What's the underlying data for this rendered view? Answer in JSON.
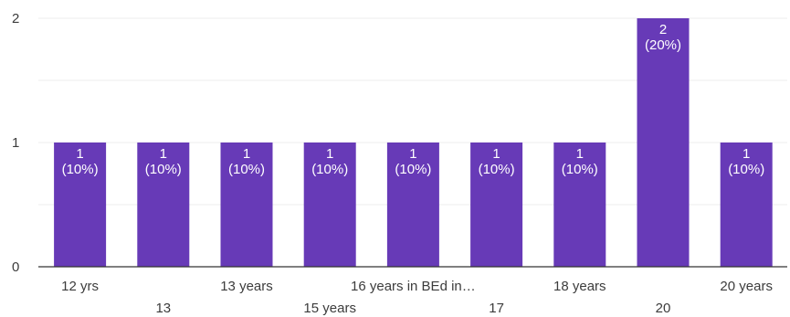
{
  "chart_data": {
    "type": "bar",
    "categories": [
      "12 yrs",
      "13",
      "13 years",
      "15 years",
      "16 years in BEd in…",
      "17",
      "18 years",
      "20",
      "20 years"
    ],
    "series": [
      {
        "values": [
          1,
          1,
          1,
          1,
          1,
          1,
          1,
          2,
          1
        ]
      }
    ],
    "data_labels": [
      "1\n(10%)",
      "1\n(10%)",
      "1\n(10%)",
      "1\n(10%)",
      "1\n(10%)",
      "1\n(10%)",
      "1\n(10%)",
      "2\n(20%)",
      "1\n(10%)"
    ],
    "y_ticks": [
      "0",
      "1",
      "2"
    ],
    "ylim": [
      0,
      2
    ],
    "grid": true,
    "bar_color": "#673ab7",
    "title": "",
    "xlabel": "",
    "ylabel": ""
  }
}
